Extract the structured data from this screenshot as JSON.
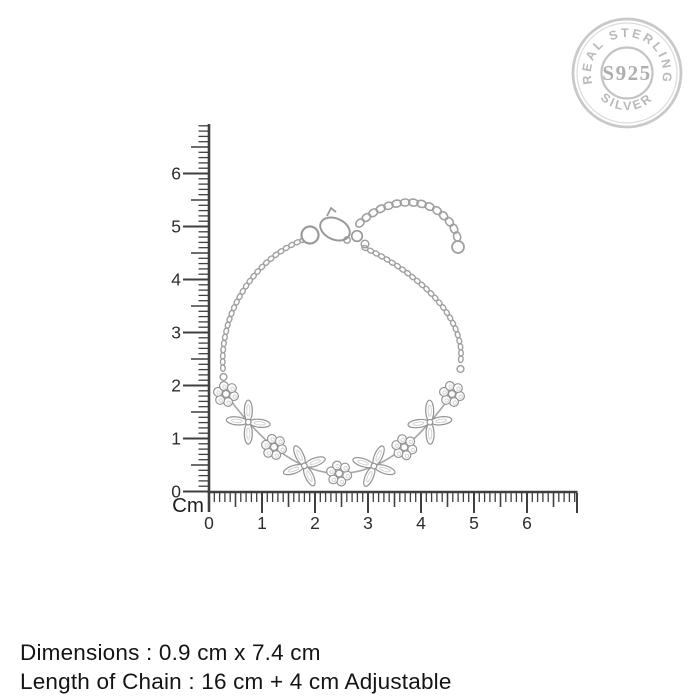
{
  "stamp": {
    "top_arc": "REAL STERLING",
    "bottom_arc": "SILVER",
    "center_text": "S925"
  },
  "ruler": {
    "unit_label": "Cm",
    "vertical_labels": [
      "0",
      "1",
      "2",
      "3",
      "4",
      "5",
      "6"
    ],
    "horizontal_labels": [
      "0",
      "1",
      "2",
      "3",
      "4",
      "5",
      "6"
    ],
    "minor_ticks_per_cm": 10
  },
  "bracelet": {
    "graphic": "silver-chain-bracelet-with-crystal-flower-clusters"
  },
  "footer": {
    "line1": "Dimensions : 0.9 cm x 7.4 cm",
    "line2": "Length of Chain : 16 cm + 4 cm Adjustable"
  },
  "colors": {
    "ruler": "#3f3f3f",
    "label_text": "#2e2e2e",
    "footer_text": "#141414",
    "silver_stamp": "#b9b9b9",
    "stamp_ring": "#c9c9c9",
    "chain_silver": "#a0a0a0",
    "gem_outline": "#949494",
    "background": "#ffffff"
  }
}
